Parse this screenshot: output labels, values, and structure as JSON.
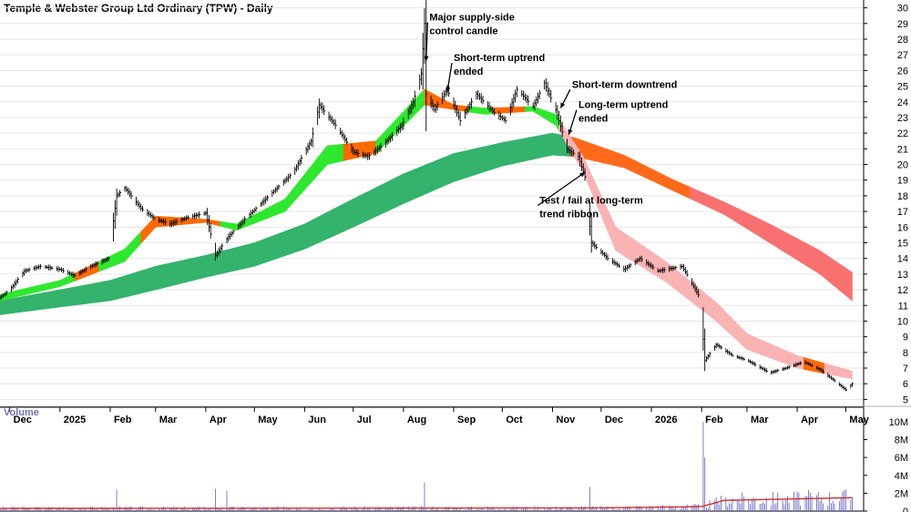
{
  "chart_data": {
    "type": "line",
    "title": "Temple & Webster Group Ltd Ordinary (TPW) - Daily",
    "price_axis": {
      "range": [
        4.5,
        30.5
      ],
      "ticks": [
        "5",
        "6",
        "7",
        "8",
        "9",
        "10",
        "11",
        "12",
        "13",
        "14",
        "15",
        "16",
        "17",
        "18",
        "19",
        "20",
        "21",
        "22",
        "23",
        "24",
        "25",
        "26",
        "27",
        "28",
        "29",
        "30"
      ]
    },
    "x_axis": {
      "range": [
        "2024-11-25",
        "2026-05-12"
      ],
      "ticks": [
        {
          "label": "Dec",
          "date": "2024-12-01"
        },
        {
          "label": "2025",
          "date": "2025-01-01"
        },
        {
          "label": "Feb",
          "date": "2025-02-01"
        },
        {
          "label": "Mar",
          "date": "2025-03-01"
        },
        {
          "label": "Apr",
          "date": "2025-04-01"
        },
        {
          "label": "May",
          "date": "2025-05-01"
        },
        {
          "label": "Jun",
          "date": "2025-06-01"
        },
        {
          "label": "Jul",
          "date": "2025-07-01"
        },
        {
          "label": "Aug",
          "date": "2025-08-01"
        },
        {
          "label": "Sep",
          "date": "2025-09-01"
        },
        {
          "label": "Oct",
          "date": "2025-10-01"
        },
        {
          "label": "Nov",
          "date": "2025-11-01"
        },
        {
          "label": "Dec",
          "date": "2025-12-01"
        },
        {
          "label": "2026",
          "date": "2026-01-01"
        },
        {
          "label": "Feb",
          "date": "2026-02-01"
        },
        {
          "label": "Mar",
          "date": "2026-03-01"
        },
        {
          "label": "Apr",
          "date": "2026-04-01"
        },
        {
          "label": "May",
          "date": "2026-05-01"
        }
      ]
    },
    "price_series": [
      [
        "2024-11-25",
        11.5
      ],
      [
        "2024-12-01",
        12.0
      ],
      [
        "2024-12-10",
        13.2
      ],
      [
        "2024-12-20",
        13.5
      ],
      [
        "2025-01-01",
        13.3
      ],
      [
        "2025-01-10",
        12.9
      ],
      [
        "2025-01-20",
        13.5
      ],
      [
        "2025-01-31",
        14.0
      ],
      [
        "2025-02-05",
        18.0
      ],
      [
        "2025-02-10",
        18.5
      ],
      [
        "2025-02-20",
        17.2
      ],
      [
        "2025-03-01",
        16.5
      ],
      [
        "2025-03-10",
        16.2
      ],
      [
        "2025-03-20",
        16.6
      ],
      [
        "2025-04-01",
        16.9
      ],
      [
        "2025-04-07",
        14.2
      ],
      [
        "2025-04-15",
        15.4
      ],
      [
        "2025-04-25",
        16.5
      ],
      [
        "2025-05-05",
        17.5
      ],
      [
        "2025-05-15",
        18.5
      ],
      [
        "2025-05-25",
        19.5
      ],
      [
        "2025-06-05",
        21.5
      ],
      [
        "2025-06-10",
        23.8
      ],
      [
        "2025-06-20",
        22.5
      ],
      [
        "2025-07-01",
        20.8
      ],
      [
        "2025-07-10",
        20.5
      ],
      [
        "2025-07-20",
        21.3
      ],
      [
        "2025-07-31",
        22.5
      ],
      [
        "2025-08-07",
        24.0
      ],
      [
        "2025-08-12",
        25.8
      ],
      [
        "2025-08-14",
        29.0
      ],
      [
        "2025-08-15",
        24.5
      ],
      [
        "2025-08-20",
        23.5
      ],
      [
        "2025-08-28",
        24.8
      ],
      [
        "2025-09-05",
        22.8
      ],
      [
        "2025-09-15",
        24.5
      ],
      [
        "2025-09-25",
        23.4
      ],
      [
        "2025-10-03",
        22.8
      ],
      [
        "2025-10-10",
        24.8
      ],
      [
        "2025-10-20",
        23.7
      ],
      [
        "2025-10-27",
        25.2
      ],
      [
        "2025-11-03",
        23.5
      ],
      [
        "2025-11-10",
        21.0
      ],
      [
        "2025-11-17",
        20.5
      ],
      [
        "2025-11-21",
        19.2
      ],
      [
        "2025-11-25",
        15.0
      ],
      [
        "2025-12-05",
        14.0
      ],
      [
        "2025-12-15",
        13.3
      ],
      [
        "2025-12-25",
        14.0
      ],
      [
        "2026-01-05",
        13.2
      ],
      [
        "2026-01-20",
        13.5
      ],
      [
        "2026-01-31",
        11.5
      ],
      [
        "2026-02-03",
        7.5
      ],
      [
        "2026-02-10",
        8.5
      ],
      [
        "2026-02-20",
        7.8
      ],
      [
        "2026-03-01",
        7.5
      ],
      [
        "2026-03-15",
        6.7
      ],
      [
        "2026-03-25",
        7.0
      ],
      [
        "2026-04-05",
        7.4
      ],
      [
        "2026-04-15",
        6.9
      ],
      [
        "2026-04-25",
        6.1
      ],
      [
        "2026-05-01",
        5.6
      ],
      [
        "2026-05-05",
        6.0
      ]
    ],
    "short_term_ribbon": {
      "upper": [
        [
          "2024-11-25",
          11.7
        ],
        [
          "2025-01-01",
          12.6
        ],
        [
          "2025-02-10",
          14.6
        ],
        [
          "2025-03-01",
          16.7
        ],
        [
          "2025-04-01",
          16.5
        ],
        [
          "2025-04-20",
          16.2
        ],
        [
          "2025-05-20",
          17.8
        ],
        [
          "2025-06-15",
          21.2
        ],
        [
          "2025-07-15",
          21.5
        ],
        [
          "2025-08-14",
          24.8
        ],
        [
          "2025-09-01",
          23.8
        ],
        [
          "2025-09-20",
          23.6
        ],
        [
          "2025-10-20",
          23.7
        ],
        [
          "2025-11-03",
          23.2
        ],
        [
          "2025-11-20",
          20.5
        ],
        [
          "2025-12-10",
          16.0
        ],
        [
          "2026-01-10",
          13.8
        ],
        [
          "2026-02-10",
          11.2
        ],
        [
          "2026-03-01",
          9.2
        ],
        [
          "2026-04-01",
          7.8
        ],
        [
          "2026-05-05",
          6.8
        ]
      ],
      "lower": [
        [
          "2024-11-25",
          11.3
        ],
        [
          "2025-01-01",
          12.2
        ],
        [
          "2025-02-10",
          13.8
        ],
        [
          "2025-03-01",
          16.0
        ],
        [
          "2025-04-01",
          16.3
        ],
        [
          "2025-04-20",
          15.8
        ],
        [
          "2025-05-20",
          17.0
        ],
        [
          "2025-06-15",
          20.0
        ],
        [
          "2025-07-15",
          20.7
        ],
        [
          "2025-08-14",
          23.8
        ],
        [
          "2025-09-01",
          23.5
        ],
        [
          "2025-09-20",
          23.2
        ],
        [
          "2025-10-20",
          23.4
        ],
        [
          "2025-11-03",
          22.5
        ],
        [
          "2025-11-20",
          19.5
        ],
        [
          "2025-12-10",
          14.5
        ],
        [
          "2026-01-10",
          12.5
        ],
        [
          "2026-02-10",
          10.0
        ],
        [
          "2026-03-01",
          8.2
        ],
        [
          "2026-04-01",
          7.0
        ],
        [
          "2026-05-05",
          6.3
        ]
      ],
      "segments": [
        {
          "from": "2024-11-25",
          "to": "2025-01-10",
          "color": "#2ee82e"
        },
        {
          "from": "2025-01-10",
          "to": "2025-01-25",
          "color": "#ff6a00"
        },
        {
          "from": "2025-01-25",
          "to": "2025-02-20",
          "color": "#2ee82e"
        },
        {
          "from": "2025-02-20",
          "to": "2025-04-10",
          "color": "#ff6a00"
        },
        {
          "from": "2025-04-10",
          "to": "2025-06-25",
          "color": "#2ee82e"
        },
        {
          "from": "2025-06-25",
          "to": "2025-07-15",
          "color": "#ff6a00"
        },
        {
          "from": "2025-07-15",
          "to": "2025-08-14",
          "color": "#2ee82e"
        },
        {
          "from": "2025-08-14",
          "to": "2025-09-10",
          "color": "#ff6a00"
        },
        {
          "from": "2025-09-10",
          "to": "2025-09-25",
          "color": "#2ee82e"
        },
        {
          "from": "2025-09-25",
          "to": "2025-10-15",
          "color": "#ff6a00"
        },
        {
          "from": "2025-10-15",
          "to": "2025-11-05",
          "color": "#2ee82e"
        },
        {
          "from": "2025-11-05",
          "to": "2026-04-05",
          "color": "#f9b3b3"
        },
        {
          "from": "2026-04-05",
          "to": "2026-04-18",
          "color": "#ff6a00"
        },
        {
          "from": "2026-04-18",
          "to": "2026-05-05",
          "color": "#f9b3b3"
        }
      ]
    },
    "long_term_ribbon": {
      "upper": [
        [
          "2024-11-25",
          11.3
        ],
        [
          "2025-01-01",
          12.0
        ],
        [
          "2025-02-01",
          12.6
        ],
        [
          "2025-03-01",
          13.5
        ],
        [
          "2025-04-01",
          14.2
        ],
        [
          "2025-05-01",
          15.0
        ],
        [
          "2025-06-01",
          16.2
        ],
        [
          "2025-07-01",
          17.8
        ],
        [
          "2025-08-01",
          19.4
        ],
        [
          "2025-09-01",
          20.7
        ],
        [
          "2025-10-01",
          21.4
        ],
        [
          "2025-11-01",
          22.0
        ],
        [
          "2025-11-15",
          21.7
        ],
        [
          "2025-12-15",
          20.6
        ],
        [
          "2026-01-15",
          19.0
        ],
        [
          "2026-02-15",
          17.6
        ],
        [
          "2026-03-15",
          16.2
        ],
        [
          "2026-04-15",
          14.5
        ],
        [
          "2026-05-05",
          13.1
        ]
      ],
      "lower": [
        [
          "2024-11-25",
          10.4
        ],
        [
          "2025-01-01",
          10.9
        ],
        [
          "2025-02-01",
          11.3
        ],
        [
          "2025-03-01",
          12.0
        ],
        [
          "2025-04-01",
          12.8
        ],
        [
          "2025-05-01",
          13.5
        ],
        [
          "2025-06-01",
          14.6
        ],
        [
          "2025-07-01",
          16.0
        ],
        [
          "2025-08-01",
          17.5
        ],
        [
          "2025-09-01",
          18.9
        ],
        [
          "2025-10-01",
          19.9
        ],
        [
          "2025-11-01",
          20.6
        ],
        [
          "2025-11-15",
          20.5
        ],
        [
          "2025-12-15",
          19.8
        ],
        [
          "2026-01-15",
          18.3
        ],
        [
          "2026-02-15",
          16.8
        ],
        [
          "2026-03-15",
          15.0
        ],
        [
          "2026-04-15",
          13.0
        ],
        [
          "2026-05-05",
          11.3
        ]
      ],
      "segments": [
        {
          "from": "2024-11-25",
          "to": "2025-11-12",
          "color": "#33b36b"
        },
        {
          "from": "2025-11-12",
          "to": "2026-01-25",
          "color": "#ff6a1a"
        },
        {
          "from": "2026-01-25",
          "to": "2026-05-05",
          "color": "#f87070"
        }
      ]
    },
    "annotations": [
      {
        "lines": [
          "Major supply-side",
          "control candle"
        ],
        "date": "2025-08-17",
        "price": 29.2,
        "arrow_to_date": "2025-08-15",
        "arrow_to_price": 26.6
      },
      {
        "lines": [
          "Short-term uptrend",
          "ended"
        ],
        "date": "2025-09-01",
        "price": 26.6,
        "arrow_to_date": "2025-08-28",
        "arrow_to_price": 24.6
      },
      {
        "lines": [
          "Short-term downtrend"
        ],
        "date": "2025-11-13",
        "price": 24.9,
        "arrow_to_date": "2025-11-06",
        "arrow_to_price": 23.6
      },
      {
        "lines": [
          "Long-term uptrend",
          "ended"
        ],
        "date": "2025-11-17",
        "price": 23.6,
        "arrow_to_date": "2025-11-11",
        "arrow_to_price": 21.9
      },
      {
        "lines": [
          "Test / fail at long-term",
          "trend ribbon"
        ],
        "date": "2025-10-24",
        "price": 17.5,
        "arrow_to_date": "2025-11-21",
        "arrow_to_price": 19.5
      }
    ],
    "volume": {
      "label": "Volume",
      "ticks": [
        "0",
        "2M",
        "4M",
        "6M",
        "8M",
        "10M"
      ],
      "range": [
        0,
        10500000
      ],
      "bars_color": "#7070c8",
      "ma_color": "#d03030",
      "spikes": [
        [
          "2025-02-05",
          2400000
        ],
        [
          "2025-04-07",
          2500000
        ],
        [
          "2025-04-14",
          2300000
        ],
        [
          "2025-08-14",
          3200000
        ],
        [
          "2025-11-24",
          2700000
        ],
        [
          "2026-02-02",
          10000000
        ],
        [
          "2026-02-03",
          6000000
        ]
      ],
      "ma": [
        [
          "2024-11-25",
          300000
        ],
        [
          "2025-11-20",
          350000
        ],
        [
          "2025-12-20",
          400000
        ],
        [
          "2026-02-01",
          500000
        ],
        [
          "2026-02-15",
          1200000
        ],
        [
          "2026-05-05",
          1500000
        ]
      ]
    }
  }
}
